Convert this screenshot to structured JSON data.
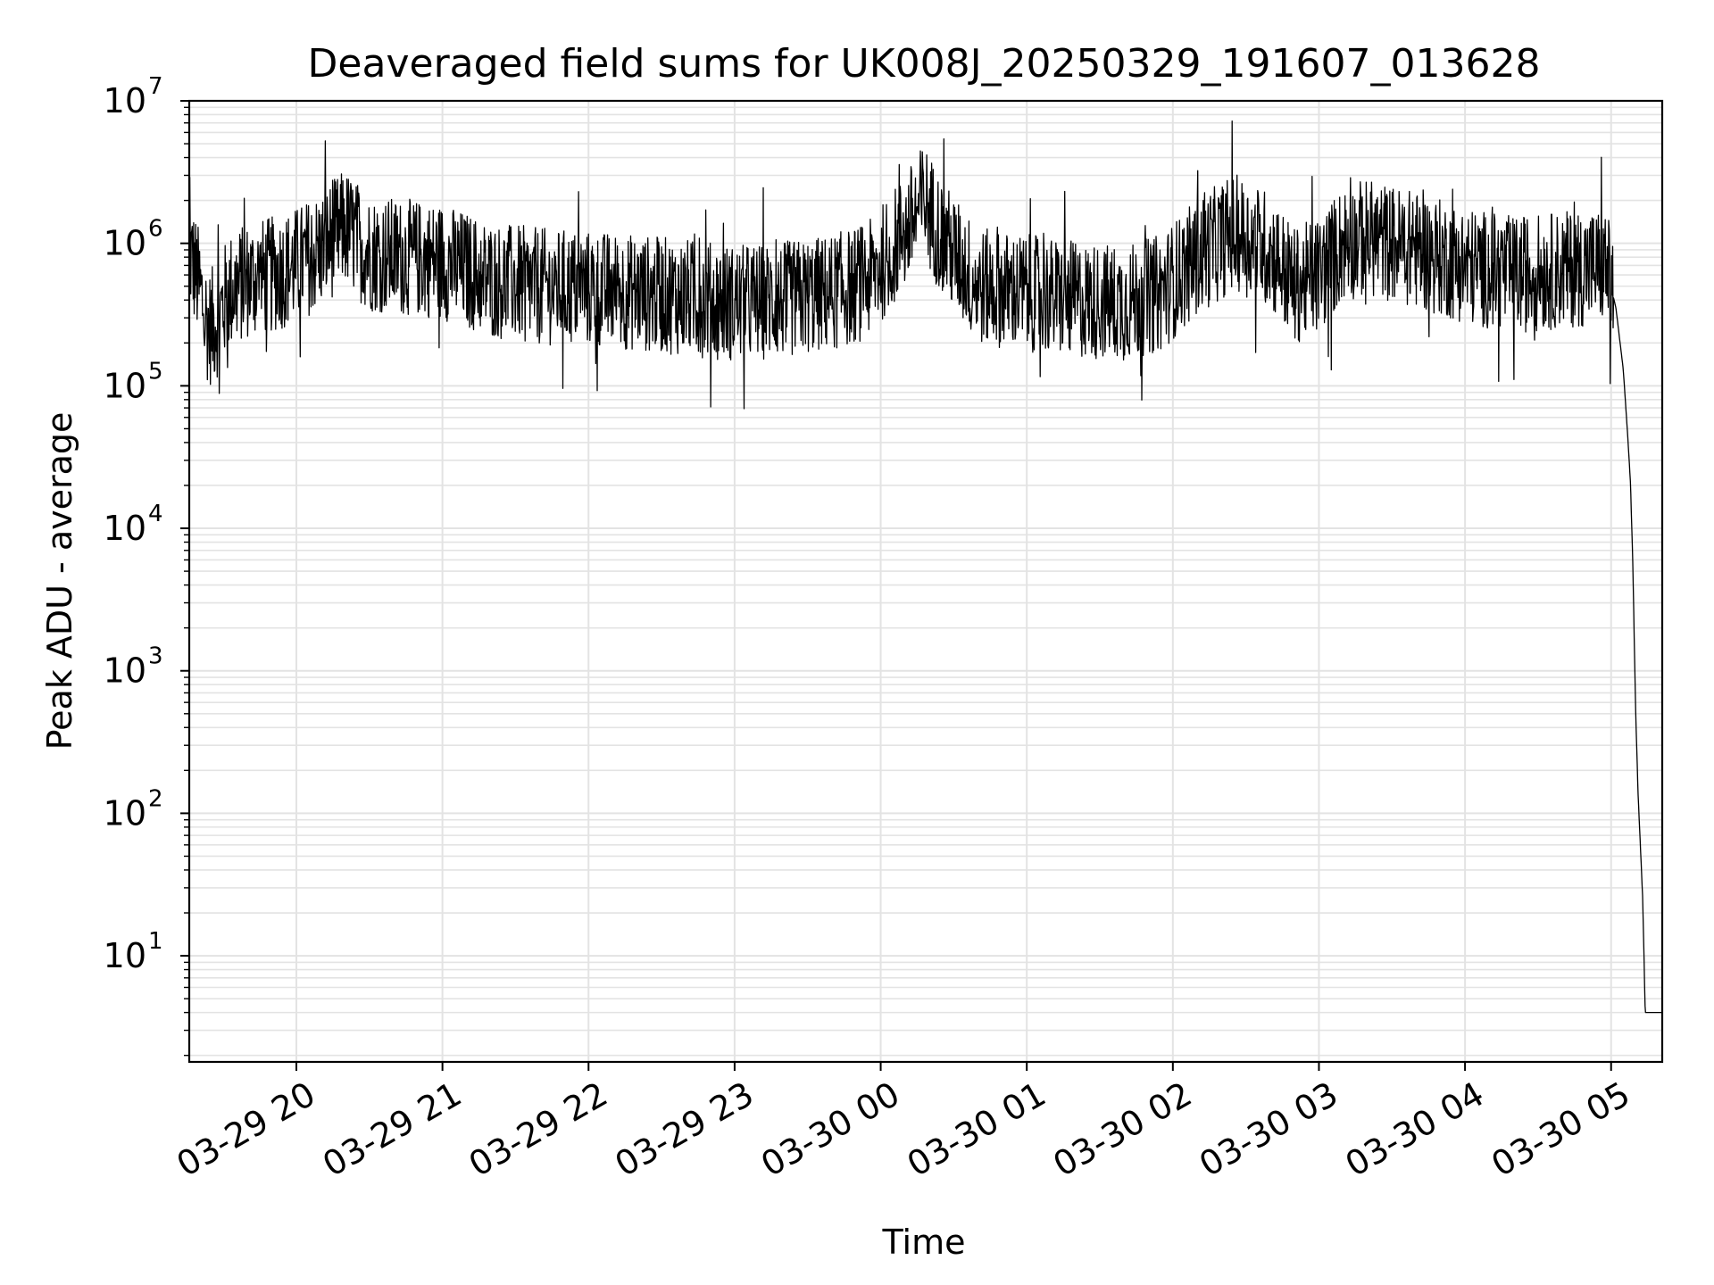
{
  "chart_data": {
    "type": "line",
    "title": "Deaveraged field sums for UK008J_20250329_191607_013628",
    "xlabel": "Time",
    "ylabel": "Peak ADU - average",
    "yscale": "log",
    "ylim": [
      1.8,
      10000000
    ],
    "xlim": [
      "2025-03-29 19:16",
      "2025-03-30 05:21"
    ],
    "x_ticks": [
      {
        "t": "2025-03-29 20:00",
        "label": "03-29 20"
      },
      {
        "t": "2025-03-29 21:00",
        "label": "03-29 21"
      },
      {
        "t": "2025-03-29 22:00",
        "label": "03-29 22"
      },
      {
        "t": "2025-03-29 23:00",
        "label": "03-29 23"
      },
      {
        "t": "2025-03-30 00:00",
        "label": "03-30 00"
      },
      {
        "t": "2025-03-30 01:00",
        "label": "03-30 01"
      },
      {
        "t": "2025-03-30 02:00",
        "label": "03-30 02"
      },
      {
        "t": "2025-03-30 03:00",
        "label": "03-30 03"
      },
      {
        "t": "2025-03-30 04:00",
        "label": "03-30 04"
      },
      {
        "t": "2025-03-30 05:00",
        "label": "03-30 05"
      }
    ],
    "y_ticks": [
      {
        "value": 10,
        "base": "10",
        "exp": "1"
      },
      {
        "value": 100,
        "base": "10",
        "exp": "2"
      },
      {
        "value": 1000,
        "base": "10",
        "exp": "3"
      },
      {
        "value": 10000,
        "base": "10",
        "exp": "4"
      },
      {
        "value": 100000,
        "base": "10",
        "exp": "5"
      },
      {
        "value": 1000000,
        "base": "10",
        "exp": "6"
      },
      {
        "value": 10000000,
        "base": "10",
        "exp": "7"
      }
    ],
    "grid": true,
    "line_color": "#000000",
    "grid_color": "#e3e3e3",
    "series": [
      {
        "values": [
          [
            "2025-03-29 19:16",
            900000
          ],
          [
            "2025-03-29 19:20",
            500000
          ],
          [
            "2025-03-29 19:24",
            250000
          ],
          [
            "2025-03-29 19:28",
            300000
          ],
          [
            "2025-03-29 19:32",
            450000
          ],
          [
            "2025-03-29 19:40",
            550000
          ],
          [
            "2025-03-29 19:50",
            600000
          ],
          [
            "2025-03-29 20:00",
            700000
          ],
          [
            "2025-03-29 20:10",
            900000
          ],
          [
            "2025-03-29 20:20",
            1300000
          ],
          [
            "2025-03-29 20:30",
            850000
          ],
          [
            "2025-03-29 20:45",
            800000
          ],
          [
            "2025-03-29 21:00",
            750000
          ],
          [
            "2025-03-29 21:20",
            550000
          ],
          [
            "2025-03-29 21:40",
            500000
          ],
          [
            "2025-03-29 22:00",
            480000
          ],
          [
            "2025-03-29 22:20",
            450000
          ],
          [
            "2025-03-29 22:40",
            420000
          ],
          [
            "2025-03-29 23:00",
            380000
          ],
          [
            "2025-03-29 23:20",
            400000
          ],
          [
            "2025-03-29 23:40",
            450000
          ],
          [
            "2025-03-29 23:55",
            550000
          ],
          [
            "2025-03-30 00:10",
            1200000
          ],
          [
            "2025-03-30 00:18",
            2000000
          ],
          [
            "2025-03-30 00:25",
            1100000
          ],
          [
            "2025-03-30 00:40",
            500000
          ],
          [
            "2025-03-30 01:00",
            450000
          ],
          [
            "2025-03-30 01:20",
            400000
          ],
          [
            "2025-03-30 01:40",
            380000
          ],
          [
            "2025-03-30 01:55",
            450000
          ],
          [
            "2025-03-30 02:10",
            800000
          ],
          [
            "2025-03-30 02:25",
            1200000
          ],
          [
            "2025-03-30 02:40",
            900000
          ],
          [
            "2025-03-30 02:50",
            500000
          ],
          [
            "2025-03-30 03:00",
            600000
          ],
          [
            "2025-03-30 03:10",
            1000000
          ],
          [
            "2025-03-30 03:20",
            1100000
          ],
          [
            "2025-03-30 03:40",
            900000
          ],
          [
            "2025-03-30 04:00",
            700000
          ],
          [
            "2025-03-30 04:20",
            600000
          ],
          [
            "2025-03-30 04:40",
            650000
          ],
          [
            "2025-03-30 04:58",
            700000
          ],
          [
            "2025-03-30 05:02",
            350000
          ],
          [
            "2025-03-30 05:05",
            130000
          ],
          [
            "2025-03-30 05:07",
            40000
          ],
          [
            "2025-03-30 05:08",
            20000
          ],
          [
            "2025-03-30 05:09",
            5000
          ],
          [
            "2025-03-30 05:10",
            600
          ],
          [
            "2025-03-30 05:11",
            150
          ],
          [
            "2025-03-30 05:12",
            60
          ],
          [
            "2025-03-30 05:13",
            25
          ],
          [
            "2025-03-30 05:14",
            4
          ],
          [
            "2025-03-30 05:21",
            4
          ]
        ]
      }
    ]
  }
}
